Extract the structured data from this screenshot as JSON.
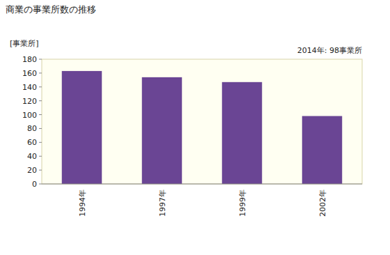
{
  "chart_data": {
    "type": "bar",
    "title": "商業の事業所数の推移",
    "y_label": "[事業所]",
    "annotations": [
      "2014年: 98事業所"
    ],
    "categories": [
      "1994年",
      "1997年",
      "1999年",
      "2002年"
    ],
    "values": [
      163,
      154,
      147,
      98
    ],
    "color": "#6a4594",
    "ylim": [
      0,
      180
    ],
    "yticks": [
      0,
      20,
      40,
      60,
      80,
      100,
      120,
      140,
      160,
      180
    ],
    "grid": false
  }
}
